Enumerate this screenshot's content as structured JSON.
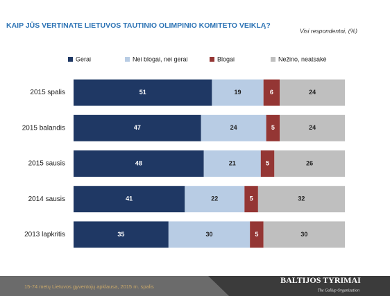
{
  "chart_data": {
    "type": "bar",
    "orientation": "horizontal",
    "stacked": true,
    "title": "KAIP JŪS VERTINATE LIETUVOS  TAUTINIO OLIMPINIO KOMITETO VEIKLĄ?",
    "subtitle": "Visi respondentai, (%)",
    "categories": [
      "2015 spalis",
      "2015 balandis",
      "2015 sausis",
      "2014 sausis",
      "2013 lapkritis"
    ],
    "series": [
      {
        "name": "Gerai",
        "color": "#1f3864",
        "values": [
          51,
          47,
          48,
          41,
          35
        ]
      },
      {
        "name": "Nei blogai, nei gerai",
        "color": "#b8cce4",
        "values": [
          19,
          24,
          21,
          22,
          30
        ]
      },
      {
        "name": "Blogai",
        "color": "#943634",
        "values": [
          6,
          5,
          5,
          5,
          5
        ]
      },
      {
        "name": "Nežino, neatsakė",
        "color": "#bfbfbf",
        "values": [
          24,
          24,
          26,
          32,
          30
        ]
      }
    ],
    "xlim": [
      0,
      100
    ],
    "legend": "top"
  },
  "footer": {
    "note": "15-74 metų Lietuvos gyventojų apklausa, 2015 m. spalis",
    "logo": "BALTIJOS TYRIMAI",
    "logo_sub": "The Gallup Organization"
  }
}
